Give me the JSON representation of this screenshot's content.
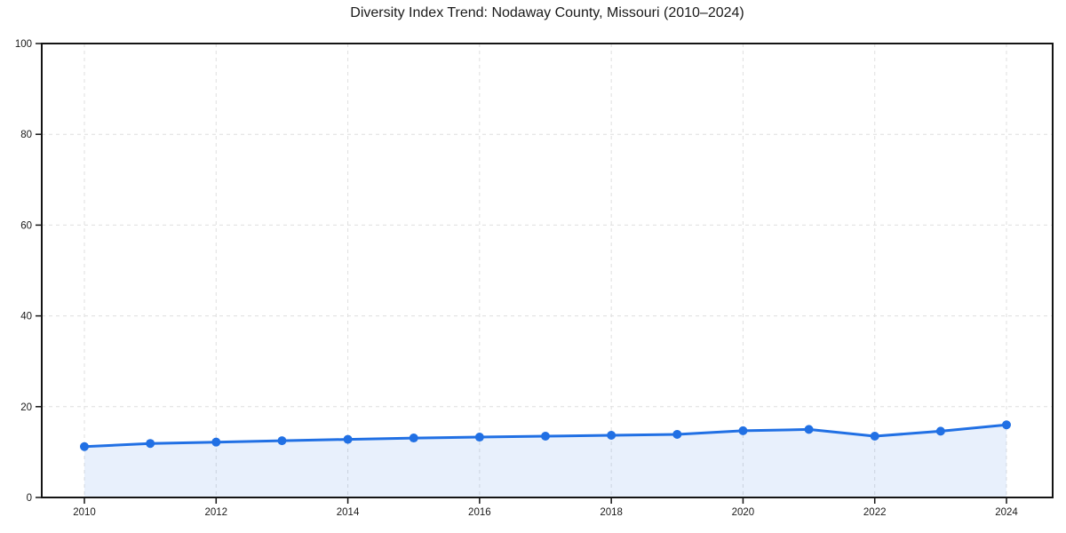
{
  "title": "Diversity Index Trend: Nodaway County, Missouri (2010–2024)",
  "chart_data": {
    "type": "area",
    "title": "Diversity Index Trend: Nodaway County, Missouri (2010–2024)",
    "xlabel": "",
    "ylabel": "",
    "x": [
      2010,
      2011,
      2012,
      2013,
      2014,
      2015,
      2016,
      2017,
      2018,
      2019,
      2020,
      2021,
      2022,
      2023,
      2024
    ],
    "series": [
      {
        "name": "Diversity Index",
        "values": [
          11.2,
          11.9,
          12.2,
          12.5,
          12.8,
          13.1,
          13.3,
          13.5,
          13.7,
          13.9,
          14.7,
          15.0,
          13.5,
          14.6,
          16.0
        ]
      }
    ],
    "xlim": [
      2009.35,
      2024.7
    ],
    "ylim": [
      0,
      100
    ],
    "x_tick_labels": [
      "2010",
      "2012",
      "2014",
      "2016",
      "2018",
      "2020",
      "2022",
      "2024"
    ],
    "x_tick_values": [
      2010,
      2012,
      2014,
      2016,
      2018,
      2020,
      2022,
      2024
    ],
    "y_tick_labels": [
      "0",
      "20",
      "40",
      "60",
      "80",
      "100"
    ],
    "y_tick_values": [
      0,
      20,
      40,
      60,
      80,
      100
    ],
    "grid": "dashed",
    "legend": "none",
    "marker": "circle"
  },
  "colors": {
    "line": "#2170e4",
    "fill": "rgba(33,112,228,0.10)",
    "grid": "#dfdfdf",
    "axis_border": "#141414",
    "tick": "#141414",
    "text": "#1a1a1a",
    "background": "#ffffff"
  }
}
